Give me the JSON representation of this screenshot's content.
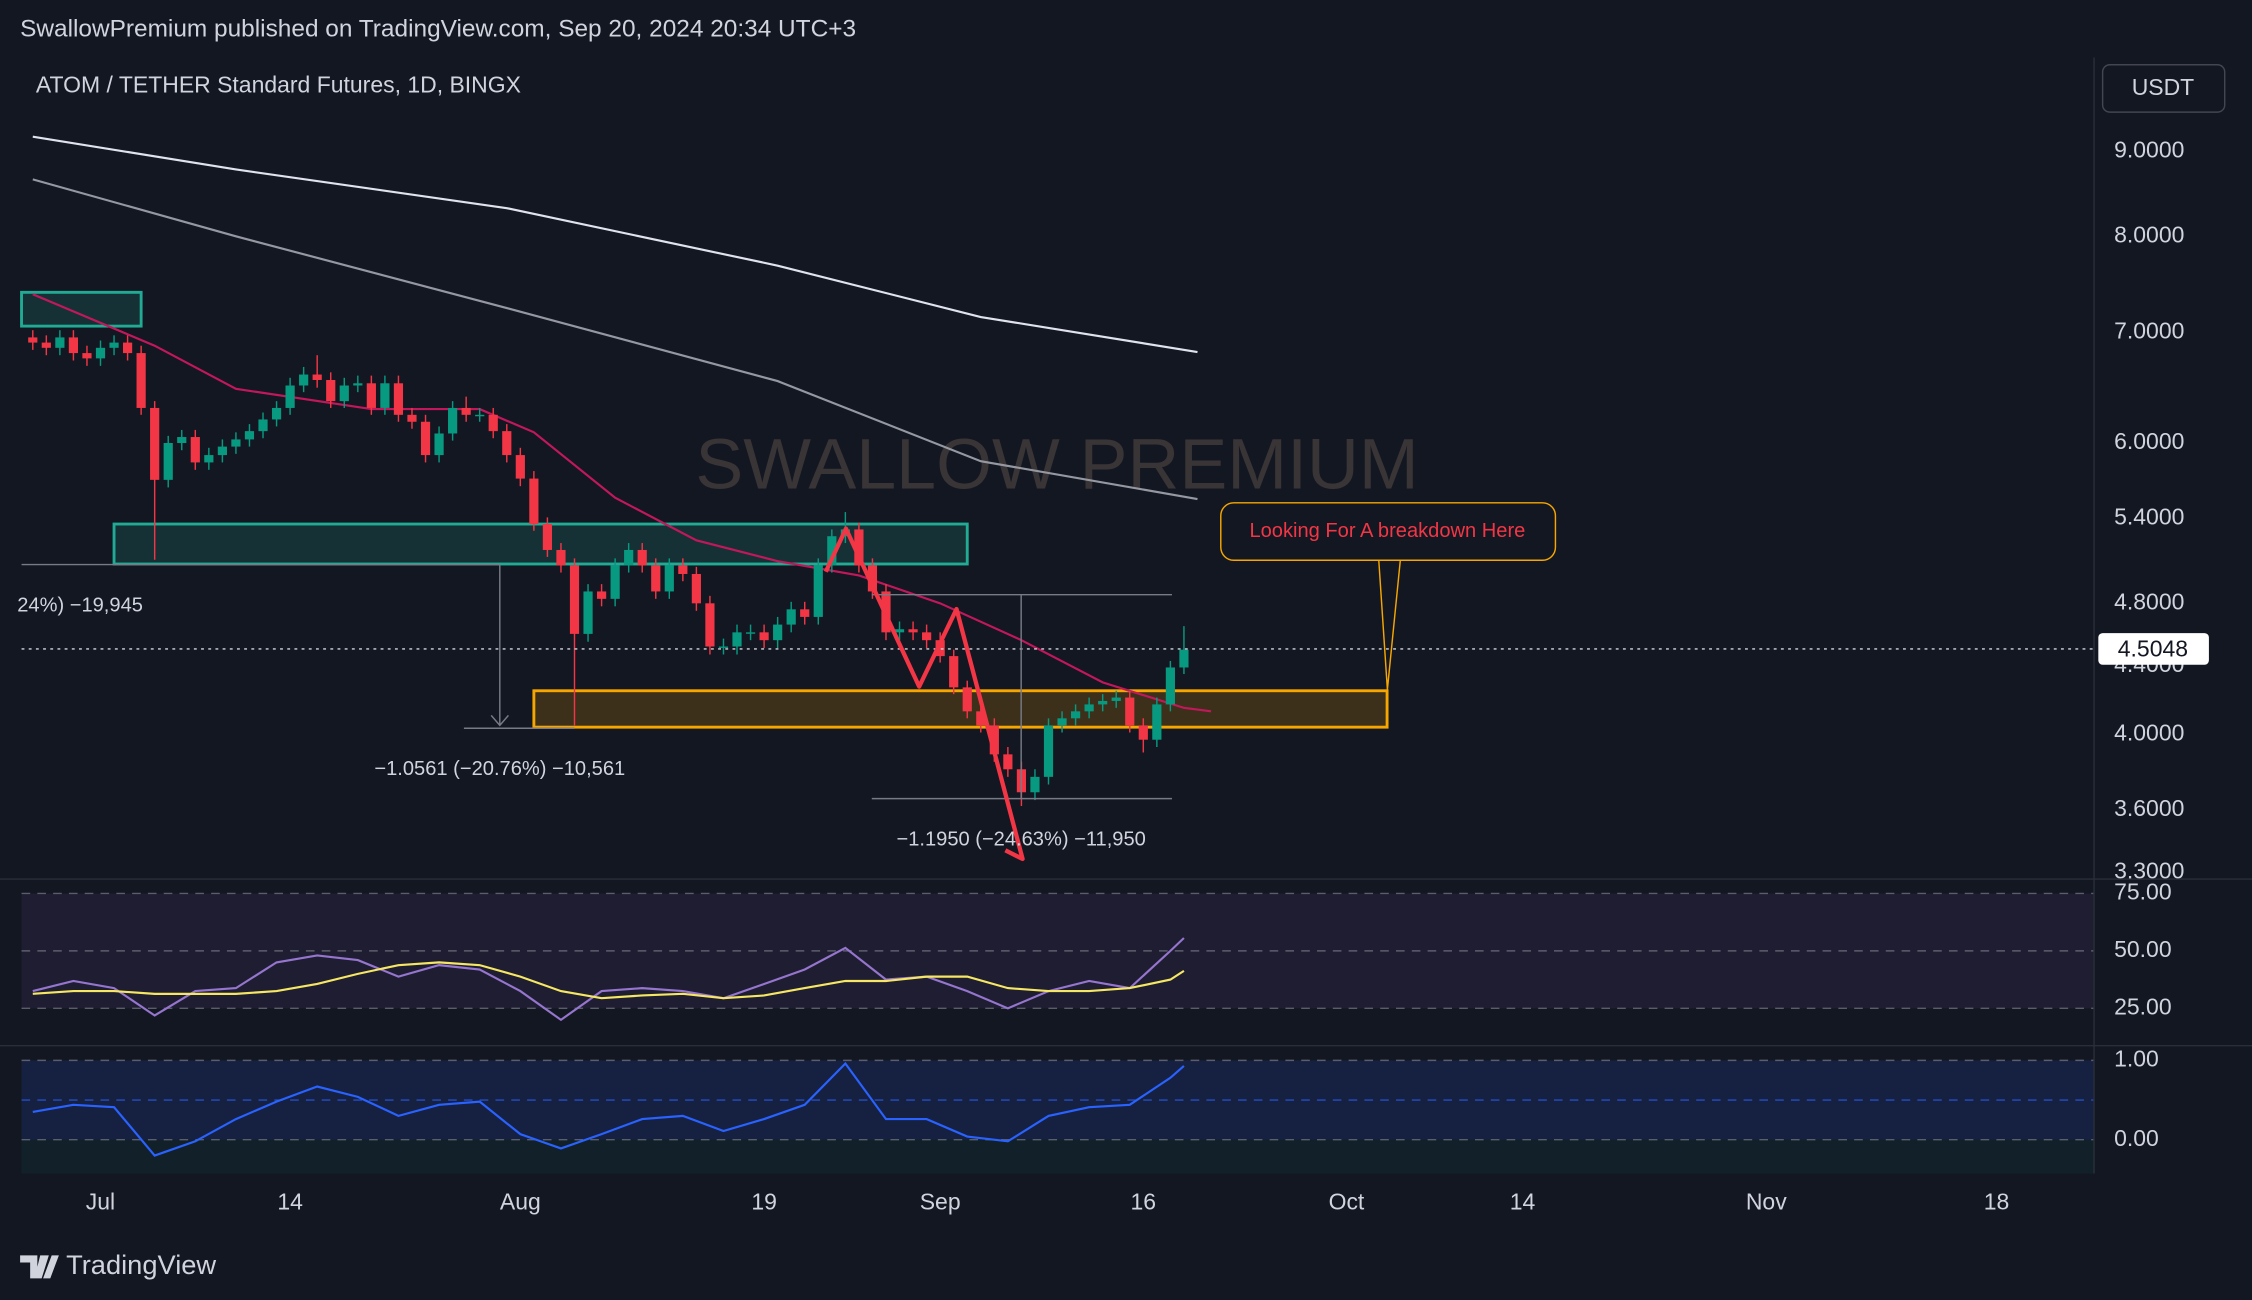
{
  "header": {
    "publisher": "SwallowPremium published on TradingView.com, Sep 20, 2024 20:34 UTC+3",
    "currency": "USDT"
  },
  "footer": {
    "brand": "TradingView"
  },
  "chart_data": [
    {
      "type": "candlestick",
      "title": "ATOM / TETHER Standard Futures, 1D, BINGX",
      "watermark": "SWALLOW PREMIUM",
      "log": true,
      "up_color": "#089981",
      "down_color": "#f23645",
      "x": [
        -5,
        -4,
        -3,
        -2,
        -1,
        0,
        1,
        2,
        3,
        4,
        5,
        6,
        7,
        8,
        9,
        10,
        11,
        12,
        13,
        14,
        15,
        16,
        17,
        18,
        19,
        20,
        21,
        22,
        23,
        24,
        25,
        26,
        27,
        28,
        29,
        30,
        31,
        32,
        33,
        34,
        35,
        36,
        37,
        38,
        39,
        40,
        41,
        42,
        43,
        44,
        45,
        46,
        47,
        48,
        49,
        50,
        51,
        52,
        53,
        54,
        55,
        56,
        57,
        58,
        59,
        60,
        61,
        62,
        63,
        64,
        65,
        66,
        67,
        68,
        69,
        70,
        71,
        72,
        73,
        74,
        75,
        76,
        77,
        78,
        79,
        80
      ],
      "open": [
        6.95,
        6.9,
        6.85,
        6.95,
        6.8,
        6.75,
        6.85,
        6.9,
        6.8,
        6.3,
        5.7,
        6.0,
        6.05,
        5.84,
        5.9,
        5.97,
        6.03,
        6.1,
        6.2,
        6.3,
        6.5,
        6.6,
        6.55,
        6.36,
        6.5,
        6.52,
        6.3,
        6.52,
        6.24,
        6.18,
        5.9,
        6.08,
        6.3,
        6.24,
        6.24,
        6.1,
        5.9,
        5.71,
        5.36,
        5.17,
        5.06,
        4.6,
        4.88,
        4.83,
        5.06,
        5.17,
        5.06,
        4.88,
        5.06,
        5.0,
        4.8,
        4.52,
        4.52,
        4.61,
        4.61,
        4.56,
        4.66,
        4.76,
        4.71,
        5.06,
        5.27,
        5.32,
        5.06,
        4.88,
        4.61,
        4.63,
        4.61,
        4.56,
        4.46,
        4.27,
        4.13,
        4.05,
        3.89,
        3.81,
        3.69,
        3.77,
        4.05,
        4.09,
        4.13,
        4.17,
        4.19,
        4.21,
        4.05,
        3.97,
        4.17,
        4.39
      ],
      "high": [
        7.02,
        6.97,
        7.02,
        7.02,
        6.87,
        6.92,
        6.97,
        6.97,
        6.87,
        6.36,
        6.06,
        6.11,
        6.11,
        5.96,
        6.03,
        6.09,
        6.16,
        6.26,
        6.36,
        6.57,
        6.67,
        6.78,
        6.62,
        6.57,
        6.59,
        6.59,
        6.59,
        6.59,
        6.3,
        6.24,
        6.14,
        6.36,
        6.4,
        6.3,
        6.3,
        6.16,
        5.96,
        5.77,
        5.41,
        5.22,
        5.11,
        4.93,
        4.93,
        5.11,
        5.22,
        5.22,
        5.11,
        5.11,
        5.11,
        5.05,
        4.85,
        4.57,
        4.66,
        4.66,
        4.66,
        4.71,
        4.81,
        4.81,
        5.11,
        5.32,
        5.45,
        5.37,
        5.11,
        4.93,
        4.68,
        4.68,
        4.66,
        4.61,
        4.5,
        4.31,
        4.17,
        4.09,
        3.93,
        3.85,
        3.81,
        4.09,
        4.13,
        4.17,
        4.21,
        4.23,
        4.25,
        4.25,
        4.09,
        4.21,
        4.43,
        4.65
      ],
      "low": [
        6.83,
        6.78,
        6.78,
        6.73,
        6.68,
        6.68,
        6.78,
        6.73,
        6.24,
        5.1,
        5.64,
        5.94,
        5.78,
        5.78,
        5.84,
        5.91,
        5.97,
        6.04,
        6.14,
        6.24,
        6.44,
        6.48,
        6.3,
        6.3,
        6.44,
        6.24,
        6.24,
        6.18,
        6.12,
        5.84,
        5.84,
        6.02,
        6.18,
        6.18,
        6.04,
        5.84,
        5.65,
        5.31,
        5.12,
        5.01,
        4.05,
        4.55,
        4.78,
        4.78,
        5.01,
        5.01,
        4.83,
        4.83,
        4.95,
        4.75,
        4.47,
        4.47,
        4.47,
        4.56,
        4.51,
        4.51,
        4.61,
        4.66,
        4.66,
        5.01,
        5.22,
        5.01,
        4.83,
        4.56,
        4.56,
        4.56,
        4.51,
        4.42,
        4.23,
        4.09,
        4.01,
        3.85,
        3.77,
        3.62,
        3.65,
        3.73,
        4.01,
        4.05,
        4.09,
        4.13,
        4.15,
        4.01,
        3.9,
        3.93,
        4.13,
        4.35
      ],
      "close": [
        6.9,
        6.85,
        6.95,
        6.8,
        6.75,
        6.85,
        6.9,
        6.8,
        6.3,
        5.7,
        6.0,
        6.05,
        5.84,
        5.9,
        5.97,
        6.03,
        6.1,
        6.2,
        6.3,
        6.5,
        6.6,
        6.55,
        6.36,
        6.5,
        6.52,
        6.3,
        6.52,
        6.24,
        6.18,
        5.9,
        6.08,
        6.3,
        6.24,
        6.24,
        6.1,
        5.9,
        5.71,
        5.36,
        5.17,
        5.06,
        4.6,
        4.88,
        4.83,
        5.06,
        5.17,
        5.06,
        4.88,
        5.06,
        5.0,
        4.8,
        4.52,
        4.52,
        4.61,
        4.61,
        4.56,
        4.66,
        4.76,
        4.71,
        5.06,
        5.27,
        5.32,
        5.06,
        4.88,
        4.61,
        4.63,
        4.61,
        4.56,
        4.46,
        4.27,
        4.13,
        4.05,
        3.89,
        3.81,
        3.69,
        3.77,
        4.05,
        4.09,
        4.13,
        4.17,
        4.19,
        4.21,
        4.05,
        3.97,
        4.17,
        4.39,
        4.5
      ],
      "lines": [
        {
          "color": "#e0e3eb",
          "x": [
            -5,
            10,
            30,
            50,
            65,
            81
          ],
          "values": [
            9.19,
            8.78,
            8.32,
            7.68,
            7.15,
            6.81
          ]
        },
        {
          "color": "#9598a1",
          "x": [
            -5,
            10,
            30,
            50,
            65,
            81
          ],
          "values": [
            8.66,
            8.0,
            7.24,
            6.54,
            5.85,
            5.55
          ]
        },
        {
          "color": "#c2185b",
          "x": [
            -5,
            4,
            10,
            20,
            28,
            32,
            38,
            44,
            50,
            56,
            62,
            68,
            74,
            80,
            82
          ],
          "values": [
            7.38,
            6.87,
            6.47,
            6.29,
            6.29,
            6.09,
            5.56,
            5.24,
            5.09,
            4.99,
            4.8,
            4.56,
            4.3,
            4.15,
            4.13
          ]
        }
      ],
      "zones": [
        {
          "color": "#22ab94",
          "x": [
            -5.83,
            3
          ],
          "y": [
            7.06,
            7.4
          ]
        },
        {
          "color": "#22ab94",
          "x": [
            1,
            64
          ],
          "y": [
            5.07,
            5.36
          ]
        },
        {
          "color": "#f7a600",
          "x": [
            32,
            95
          ],
          "y": [
            4.04,
            4.25
          ]
        }
      ],
      "annotations": [
        "24%) −19,945",
        "−1.0561 (−20.76%) −10,561",
        "−1.1950 (−24.63%) −11,950",
        "Looking For A breakdown Here"
      ],
      "last_price": 4.5048,
      "xlim": [
        -5.83,
        147.2
      ],
      "xticks": [
        {
          "value": 0,
          "label": "Jul"
        },
        14,
        {
          "value": 31,
          "label": "Aug"
        },
        {
          "value": 49,
          "label": "19"
        },
        {
          "value": 62,
          "label": "Sep"
        },
        {
          "value": 77,
          "label": "16"
        },
        {
          "value": 92,
          "label": "Oct"
        },
        {
          "value": 105,
          "label": "14"
        },
        {
          "value": 123,
          "label": "Nov"
        },
        {
          "value": 140,
          "label": "18"
        }
      ],
      "ylim": [
        3.27,
        10.26
      ],
      "yticks": [
        {
          "value": 9,
          "label": "9.0000"
        },
        {
          "value": 8,
          "label": "8.0000"
        },
        {
          "value": 7,
          "label": "7.0000"
        },
        {
          "value": 6,
          "label": "6.0000"
        },
        {
          "value": 5.4,
          "label": "5.4000"
        },
        {
          "value": 4.8,
          "label": "4.8000"
        },
        {
          "value": 4.4,
          "label": "4.4000"
        },
        {
          "value": 4,
          "label": "4.0000"
        },
        {
          "value": 3.6,
          "label": "3.6000"
        },
        {
          "value": 3.3,
          "label": "3.3000"
        }
      ]
    },
    {
      "type": "line",
      "grid": true,
      "band_color": "#7e57c2",
      "x": [
        -5,
        -2,
        1,
        4,
        7,
        10,
        13,
        16,
        19,
        22,
        25,
        28,
        31,
        34,
        37,
        40,
        43,
        46,
        49,
        52,
        55,
        58,
        61,
        64,
        67,
        70,
        73,
        76,
        79,
        80
      ],
      "series": [
        {
          "color": "#9575cd",
          "values": [
            32.5,
            36.9,
            33.8,
            21.9,
            32.5,
            33.8,
            45,
            48,
            46,
            38.8,
            43.8,
            41.9,
            32.5,
            20,
            32.5,
            33.8,
            32.5,
            29.4,
            35.6,
            41.9,
            51.3,
            37.5,
            38.8,
            32.5,
            25,
            32.5,
            36.9,
            33.8,
            50,
            55.6
          ]
        },
        {
          "color": "#f5e663",
          "values": [
            31.3,
            32.5,
            32.5,
            31.3,
            31.3,
            31.3,
            32.5,
            35.6,
            40,
            43.8,
            45,
            43.8,
            38.8,
            32.5,
            29.4,
            30.6,
            31.3,
            29.4,
            30.6,
            33.8,
            36.9,
            36.9,
            38.8,
            38.8,
            33.8,
            32.5,
            32.5,
            33.8,
            37.5,
            41.3
          ]
        }
      ],
      "xlim": [
        -5.83,
        147.2
      ],
      "ylim": [
        8.75,
        81.25
      ],
      "yticks": [
        {
          "value": 75,
          "label": "75.00"
        },
        {
          "value": 50,
          "label": "50.00"
        },
        {
          "value": 25,
          "label": "25.00"
        }
      ]
    },
    {
      "type": "line",
      "grid": true,
      "band_color": "#2962ff",
      "x": [
        -5,
        -2,
        1,
        4,
        7,
        10,
        13,
        16,
        19,
        22,
        25,
        28,
        31,
        34,
        37,
        40,
        43,
        46,
        49,
        52,
        55,
        58,
        61,
        64,
        67,
        70,
        73,
        76,
        79,
        80
      ],
      "series": [
        {
          "color": "#2962ff",
          "values": [
            0.35,
            0.44,
            0.41,
            -0.2,
            -0.02,
            0.26,
            0.48,
            0.67,
            0.54,
            0.3,
            0.44,
            0.48,
            0.07,
            -0.11,
            0.07,
            0.26,
            0.3,
            0.11,
            0.26,
            0.44,
            0.96,
            0.26,
            0.26,
            0.04,
            -0.02,
            0.3,
            0.41,
            0.44,
            0.78,
            0.93
          ]
        }
      ],
      "xlim": [
        -5.83,
        147.2
      ],
      "ylim": [
        -0.426,
        1.185
      ],
      "yticks": [
        {
          "value": 1,
          "label": "1.00"
        },
        {
          "value": 0,
          "label": "0.00"
        }
      ]
    }
  ]
}
